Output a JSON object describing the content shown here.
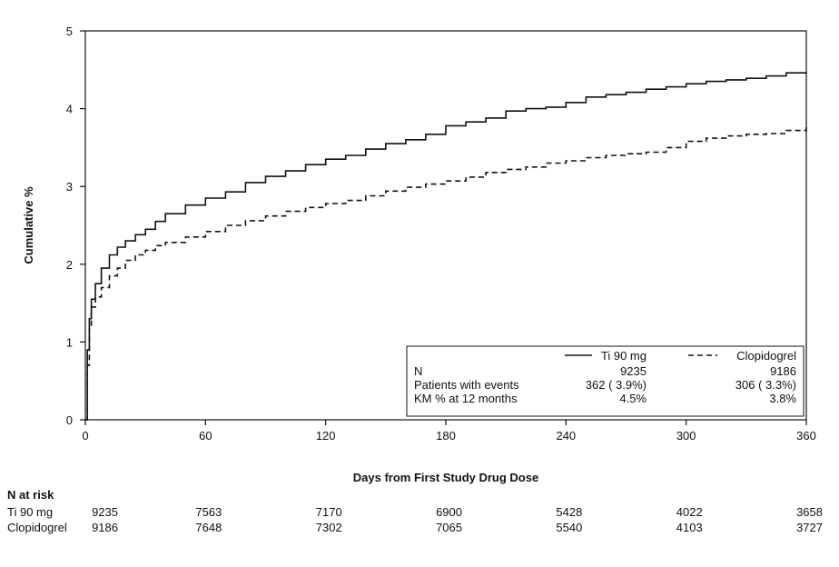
{
  "chart_data": {
    "type": "line",
    "title": "",
    "xlabel": "Days from First Study Drug Dose",
    "ylabel": "Cumulative %",
    "xlim": [
      0,
      360
    ],
    "ylim": [
      0,
      5
    ],
    "xticks": [
      0,
      60,
      120,
      180,
      240,
      300,
      360
    ],
    "yticks": [
      0,
      1,
      2,
      3,
      4,
      5
    ],
    "grid": false,
    "legend_position": "bottom-right",
    "series": [
      {
        "name": "Ti 90 mg",
        "line_style": "solid",
        "x": [
          0,
          1,
          2,
          3,
          5,
          8,
          12,
          16,
          20,
          25,
          30,
          35,
          40,
          50,
          60,
          70,
          80,
          90,
          100,
          110,
          120,
          130,
          140,
          150,
          160,
          170,
          180,
          190,
          200,
          210,
          220,
          230,
          240,
          250,
          260,
          270,
          280,
          290,
          300,
          310,
          320,
          330,
          340,
          350,
          360
        ],
        "y": [
          0,
          0.9,
          1.3,
          1.55,
          1.75,
          1.95,
          2.12,
          2.22,
          2.3,
          2.38,
          2.45,
          2.55,
          2.65,
          2.76,
          2.85,
          2.93,
          3.05,
          3.13,
          3.2,
          3.28,
          3.35,
          3.4,
          3.48,
          3.55,
          3.6,
          3.67,
          3.78,
          3.83,
          3.88,
          3.97,
          4.0,
          4.02,
          4.08,
          4.15,
          4.18,
          4.21,
          4.25,
          4.28,
          4.32,
          4.35,
          4.37,
          4.39,
          4.42,
          4.46,
          4.47
        ]
      },
      {
        "name": "Clopidogrel",
        "line_style": "dashed",
        "x": [
          0,
          1,
          2,
          3,
          5,
          8,
          12,
          16,
          20,
          25,
          30,
          35,
          40,
          50,
          60,
          70,
          80,
          90,
          100,
          110,
          120,
          130,
          140,
          150,
          160,
          170,
          180,
          190,
          200,
          210,
          220,
          230,
          240,
          250,
          260,
          270,
          280,
          290,
          300,
          310,
          320,
          330,
          340,
          350,
          360
        ],
        "y": [
          0,
          0.7,
          1.2,
          1.45,
          1.58,
          1.7,
          1.85,
          1.95,
          2.05,
          2.12,
          2.18,
          2.24,
          2.28,
          2.35,
          2.42,
          2.5,
          2.56,
          2.62,
          2.68,
          2.73,
          2.78,
          2.82,
          2.88,
          2.94,
          2.99,
          3.03,
          3.07,
          3.12,
          3.18,
          3.22,
          3.25,
          3.3,
          3.33,
          3.37,
          3.4,
          3.42,
          3.44,
          3.5,
          3.58,
          3.62,
          3.65,
          3.67,
          3.68,
          3.72,
          3.77
        ]
      }
    ],
    "legend_table": {
      "series_names": [
        "Ti 90 mg",
        "Clopidogrel"
      ],
      "rows": [
        {
          "label": "N",
          "values": [
            "9235",
            "9186"
          ]
        },
        {
          "label": "Patients with events",
          "values": [
            "362 ( 3.9%)",
            "306 ( 3.3%)"
          ]
        },
        {
          "label": "KM % at 12 months",
          "values": [
            "4.5%",
            "3.8%"
          ]
        }
      ]
    },
    "risk_table": {
      "title": "N at risk",
      "timepoints": [
        0,
        60,
        120,
        180,
        240,
        300,
        360
      ],
      "rows": [
        {
          "name": "Ti 90 mg",
          "values": [
            "9235",
            "7563",
            "7170",
            "6900",
            "5428",
            "4022",
            "3658"
          ]
        },
        {
          "name": "Clopidogrel",
          "values": [
            "9186",
            "7648",
            "7302",
            "7065",
            "5540",
            "4103",
            "3727"
          ]
        }
      ]
    }
  }
}
